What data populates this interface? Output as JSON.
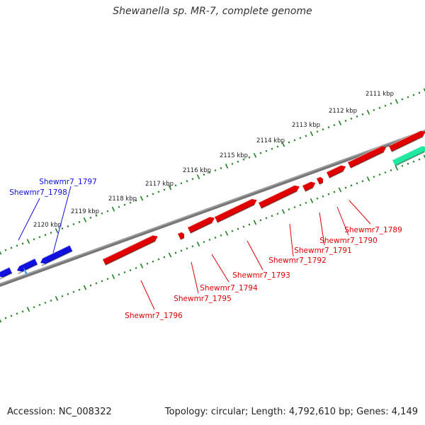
{
  "title": "Shewanella sp. MR-7, complete genome",
  "footer": {
    "accession": "Accession: NC_008322",
    "topology": "Topology: circular; Length: 4,792,610 bp; Genes: 4,149"
  },
  "colors": {
    "forward_gene": "#e00000",
    "reverse_gene": "#1010e0",
    "rna_gene": "#22e8a0",
    "backbone": "#777777",
    "ruler": "#208020"
  },
  "ruler_labels": [
    "2111 kbp",
    "2112 kbp",
    "2113 kbp",
    "2114 kbp",
    "2115 kbp",
    "2116 kbp",
    "2117 kbp",
    "2118 kbp",
    "2119 kbp",
    "2120 kbp"
  ],
  "forward_gene_labels": [
    "Shewmr7_1789",
    "Shewmr7_1790",
    "Shewmr7_1791",
    "Shewmr7_1792",
    "Shewmr7_1793",
    "Shewmr7_1794",
    "Shewmr7_1795",
    "Shewmr7_1796"
  ],
  "reverse_gene_labels": [
    "Shewmr7_1797",
    "Shewmr7_1798"
  ]
}
